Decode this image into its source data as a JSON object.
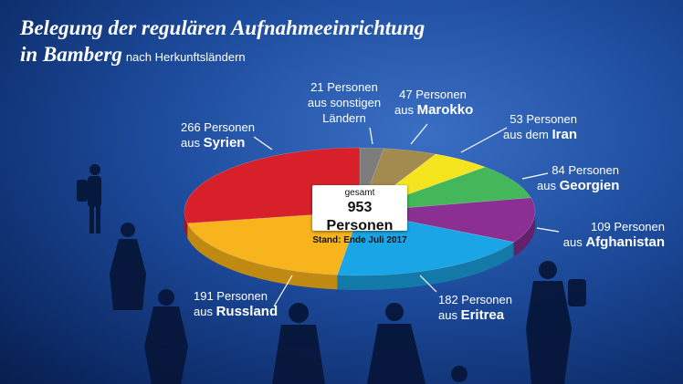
{
  "title": {
    "line1": "Belegung der regulären Aufnahmeeinrichtung",
    "line2": "in Bamberg",
    "subtitle": "nach Herkunftsländern"
  },
  "center": {
    "label": "gesamt",
    "total": "953 Personen",
    "date": "Stand: Ende Juli 2017"
  },
  "chart_data": {
    "type": "pie",
    "title": "Belegung der regulären Aufnahmeeinrichtung in Bamberg nach Herkunftsländern",
    "total": 953,
    "slices": [
      {
        "key": "sonstige",
        "value": 21,
        "count_label": "21 Personen",
        "country_label": "aus sonstigen Ländern",
        "color": "#7d7d7d",
        "side": "#5a5a5a"
      },
      {
        "key": "marokko",
        "value": 47,
        "count_label": "47 Personen",
        "country_label": "aus Marokko",
        "color": "#a38a4e",
        "side": "#7a6638"
      },
      {
        "key": "iran",
        "value": 53,
        "count_label": "53 Personen",
        "country_label": "aus dem Iran",
        "color": "#f5e51f",
        "side": "#c2b514"
      },
      {
        "key": "georgien",
        "value": 84,
        "count_label": "84 Personen",
        "country_label": "aus Georgien",
        "color": "#43b75a",
        "side": "#2f8a42"
      },
      {
        "key": "afghanistan",
        "value": 109,
        "count_label": "109 Personen",
        "country_label": "aus Afghanistan",
        "color": "#8b2f93",
        "side": "#64206b"
      },
      {
        "key": "eritrea",
        "value": 182,
        "count_label": "182 Personen",
        "country_label": "aus Eritrea",
        "color": "#1aa6e6",
        "side": "#1379a8"
      },
      {
        "key": "russland",
        "value": 191,
        "count_label": "191 Personen",
        "country_label": "aus Russland",
        "color": "#f8b41c",
        "side": "#c08a12"
      },
      {
        "key": "syrien",
        "value": 266,
        "count_label": "266 Personen",
        "country_label": "aus Syrien",
        "color": "#d7202a",
        "side": "#9e161d"
      }
    ]
  },
  "labels": {
    "sonstige": {
      "count": "21 Personen",
      "line2": "aus sonstigen",
      "line3": "Ländern"
    },
    "marokko": {
      "count": "47 Personen",
      "prefix": "aus",
      "country": "Marokko"
    },
    "iran": {
      "count": "53 Personen",
      "prefix": "aus dem",
      "country": "Iran"
    },
    "georgien": {
      "count": "84 Personen",
      "prefix": "aus",
      "country": "Georgien"
    },
    "afghanistan": {
      "count": "109 Personen",
      "prefix": "aus",
      "country": "Afghanistan"
    },
    "eritrea": {
      "count": "182 Personen",
      "prefix": "aus",
      "country": "Eritrea"
    },
    "russland": {
      "count": "191 Personen",
      "prefix": "aus",
      "country": "Russland"
    },
    "syrien": {
      "count": "266 Personen",
      "prefix": "aus",
      "country": "Syrien"
    }
  }
}
